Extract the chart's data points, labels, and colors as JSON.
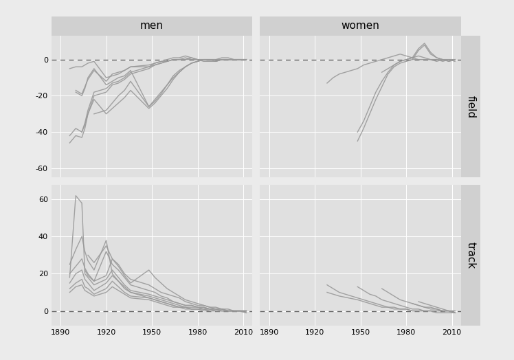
{
  "col_labels": [
    "men",
    "women"
  ],
  "row_labels": [
    "field",
    "track"
  ],
  "fig_bg": "#ebebeb",
  "panel_bg": "#e0e0e0",
  "strip_bg": "#d0d0d0",
  "line_color": "#999999",
  "x_ticks": [
    1890,
    1920,
    1950,
    1980,
    2010
  ],
  "field_ylim": [
    -65,
    13
  ],
  "field_yticks": [
    0,
    -20,
    -40,
    -60
  ],
  "track_ylim": [
    -8,
    68
  ],
  "track_yticks": [
    0,
    20,
    40,
    60
  ],
  "men_field_events": [
    {
      "years": [
        1896,
        1900,
        1904,
        1906,
        1908,
        1912,
        1920,
        1924,
        1928,
        1932,
        1936,
        1948,
        1952,
        1956,
        1960,
        1964,
        1968,
        1972,
        1976,
        1980,
        1984,
        1988,
        1992,
        1996,
        2000,
        2004,
        2008,
        2012
      ],
      "values": [
        -46,
        -42,
        -43,
        -38,
        -30,
        -20,
        -18,
        -14,
        -13,
        -11,
        -8,
        -5,
        -3,
        -2,
        -1,
        0,
        0,
        1,
        0,
        0,
        -1,
        -1,
        -1,
        0,
        0,
        0,
        0,
        0
      ]
    },
    {
      "years": [
        1896,
        1900,
        1904,
        1906,
        1908,
        1912,
        1920,
        1924,
        1928,
        1932,
        1936,
        1948,
        1952,
        1956,
        1960,
        1964,
        1968,
        1972,
        1976,
        1980,
        1984,
        1988,
        1992,
        1996,
        2000,
        2004,
        2008,
        2012
      ],
      "values": [
        -42,
        -38,
        -40,
        -35,
        -28,
        -18,
        -16,
        -13,
        -12,
        -10,
        -7,
        -4,
        -2,
        -1,
        0,
        1,
        1,
        2,
        1,
        0,
        0,
        0,
        0,
        1,
        1,
        0,
        0,
        0
      ]
    },
    {
      "years": [
        1900,
        1904,
        1906,
        1908,
        1912,
        1920,
        1924,
        1928,
        1932,
        1936,
        1948,
        1952,
        1956,
        1960,
        1964,
        1968,
        1972,
        1976,
        1980,
        1984,
        1988,
        1992,
        1996,
        2000,
        2004,
        2008,
        2012
      ],
      "values": [
        -18,
        -20,
        -16,
        -10,
        -5,
        -14,
        -12,
        -10,
        -9,
        -6,
        -26,
        -22,
        -18,
        -14,
        -10,
        -7,
        -4,
        -2,
        -1,
        0,
        0,
        0,
        0,
        0,
        0,
        0,
        0
      ]
    },
    {
      "years": [
        1904,
        1906,
        1908,
        1912,
        1920,
        1924,
        1928,
        1932,
        1936,
        1948,
        1952,
        1956,
        1960,
        1964,
        1968,
        1972,
        1976,
        1980,
        1984,
        1988,
        1992,
        1996,
        2000,
        2004,
        2008,
        2012
      ],
      "values": [
        -40,
        -36,
        -30,
        -22,
        -30,
        -27,
        -24,
        -21,
        -17,
        -27,
        -24,
        -20,
        -16,
        -11,
        -7,
        -4,
        -2,
        -1,
        0,
        0,
        -1,
        0,
        0,
        0,
        0,
        0
      ]
    },
    {
      "years": [
        1900,
        1904,
        1908,
        1912,
        1920,
        1924,
        1928,
        1932,
        1936,
        1948,
        1952,
        1956,
        1960,
        1964,
        1968,
        1972,
        1976,
        1980,
        1984,
        1988,
        1992,
        1996,
        2000,
        2004,
        2008,
        2012
      ],
      "values": [
        -17,
        -19,
        -11,
        -6,
        -12,
        -8,
        -7,
        -6,
        -4,
        -4,
        -3,
        -2,
        -1,
        0,
        0,
        0,
        1,
        0,
        0,
        0,
        -1,
        0,
        0,
        0,
        0,
        0
      ]
    },
    {
      "years": [
        1912,
        1920,
        1924,
        1928,
        1932,
        1936,
        1948,
        1952,
        1956,
        1960,
        1964,
        1968,
        1972,
        1976,
        1980,
        1984,
        1988,
        1992,
        1996,
        2000,
        2004,
        2008,
        2012
      ],
      "values": [
        -30,
        -28,
        -24,
        -20,
        -17,
        -12,
        -26,
        -23,
        -19,
        -14,
        -9,
        -6,
        -4,
        -2,
        -1,
        0,
        0,
        0,
        0,
        0,
        0,
        0,
        0
      ]
    },
    {
      "years": [
        1896,
        1900,
        1904,
        1906,
        1908,
        1912,
        1920,
        1924,
        1928,
        1932,
        1936,
        1948,
        1952,
        1956,
        1960,
        1964,
        1968,
        1972,
        1976,
        1980,
        1984,
        1988,
        1992,
        1996,
        2000,
        2004,
        2008,
        2012
      ],
      "values": [
        -5,
        -4,
        -4,
        -3,
        -2,
        -1,
        -10,
        -9,
        -8,
        -6,
        -4,
        -3,
        -2,
        -1,
        -1,
        0,
        0,
        0,
        0,
        0,
        0,
        0,
        0,
        0,
        0,
        0,
        0,
        0
      ]
    }
  ],
  "women_field_events": [
    {
      "years": [
        1928,
        1932,
        1936,
        1948,
        1952,
        1956,
        1960,
        1964,
        1968,
        1972,
        1976,
        1980,
        1984,
        1988,
        1992,
        1996,
        2000,
        2004,
        2008,
        2012
      ],
      "values": [
        -13,
        -10,
        -8,
        -5,
        -3,
        -2,
        -1,
        0,
        1,
        2,
        3,
        2,
        1,
        0,
        0,
        0,
        0,
        -1,
        0,
        0
      ]
    },
    {
      "years": [
        1948,
        1952,
        1956,
        1960,
        1964,
        1968,
        1972,
        1976,
        1980,
        1984,
        1988,
        1992,
        1996,
        2000,
        2004,
        2008,
        2012
      ],
      "values": [
        -45,
        -38,
        -30,
        -22,
        -15,
        -8,
        -4,
        -2,
        -1,
        0,
        5,
        8,
        3,
        1,
        0,
        -1,
        0
      ]
    },
    {
      "years": [
        1948,
        1952,
        1956,
        1960,
        1964,
        1968,
        1972,
        1976,
        1980,
        1984,
        1988,
        1992,
        1996,
        2000,
        2004,
        2008,
        2012
      ],
      "values": [
        -40,
        -34,
        -26,
        -18,
        -12,
        -7,
        -3,
        -1,
        0,
        1,
        6,
        9,
        4,
        1,
        0,
        -1,
        0
      ]
    },
    {
      "years": [
        1964,
        1968,
        1972,
        1976,
        1980,
        1984,
        1988,
        1992,
        1996,
        2000,
        2004,
        2008,
        2012
      ],
      "values": [
        -7,
        -5,
        -3,
        -1,
        0,
        1,
        2,
        1,
        0,
        0,
        0,
        0,
        0
      ]
    },
    {
      "years": [
        1984,
        1988,
        1992,
        1996,
        2000,
        2004,
        2008,
        2012
      ],
      "values": [
        0,
        0,
        0,
        0,
        -1,
        0,
        0,
        -1
      ]
    }
  ],
  "men_track_events": [
    {
      "years": [
        1896,
        1900,
        1904,
        1906,
        1908,
        1912,
        1920,
        1924,
        1928,
        1932,
        1936,
        1948,
        1952,
        1956,
        1960,
        1964,
        1968,
        1972,
        1976,
        1980,
        1984,
        1988,
        1992,
        1996,
        2000,
        2004,
        2008,
        2012
      ],
      "values": [
        18,
        62,
        58,
        20,
        18,
        14,
        17,
        22,
        18,
        14,
        11,
        9,
        8,
        7,
        6,
        5,
        4,
        3,
        3,
        2,
        2,
        1,
        1,
        1,
        0,
        0,
        0,
        -1
      ]
    },
    {
      "years": [
        1896,
        1900,
        1904,
        1906,
        1908,
        1912,
        1920,
        1924,
        1928,
        1932,
        1936,
        1948,
        1952,
        1956,
        1960,
        1964,
        1968,
        1972,
        1976,
        1980,
        1984,
        1988,
        1992,
        1996,
        2000,
        2004,
        2008,
        2012
      ],
      "values": [
        15,
        20,
        22,
        17,
        15,
        11,
        15,
        19,
        16,
        12,
        10,
        8,
        7,
        6,
        5,
        4,
        3,
        2,
        2,
        2,
        1,
        1,
        1,
        1,
        0,
        0,
        0,
        0
      ]
    },
    {
      "years": [
        1896,
        1900,
        1904,
        1906,
        1908,
        1912,
        1920,
        1924,
        1928,
        1932,
        1936,
        1948,
        1952,
        1956,
        1960,
        1964,
        1968,
        1972,
        1976,
        1980,
        1984,
        1988,
        1992,
        1996,
        2000,
        2004,
        2008,
        2012
      ],
      "values": [
        12,
        15,
        17,
        13,
        12,
        9,
        12,
        16,
        13,
        10,
        8,
        7,
        6,
        5,
        4,
        3,
        2,
        2,
        1,
        1,
        1,
        1,
        0,
        0,
        0,
        0,
        0,
        0
      ]
    },
    {
      "years": [
        1896,
        1900,
        1904,
        1906,
        1908,
        1912,
        1920,
        1924,
        1928,
        1932,
        1936,
        1948,
        1952,
        1956,
        1960,
        1964,
        1968,
        1972,
        1976,
        1980,
        1984,
        1988,
        1992,
        1996,
        2000,
        2004,
        2008,
        2012
      ],
      "values": [
        10,
        13,
        14,
        11,
        10,
        8,
        10,
        13,
        11,
        9,
        7,
        6,
        5,
        4,
        3,
        2,
        2,
        1,
        1,
        1,
        1,
        0,
        0,
        0,
        0,
        0,
        0,
        0
      ]
    },
    {
      "years": [
        1896,
        1900,
        1904,
        1906,
        1908,
        1912,
        1920,
        1924,
        1928,
        1932,
        1936,
        1948,
        1952,
        1956,
        1960,
        1964,
        1968,
        1972,
        1976,
        1980,
        1984,
        1988,
        1992,
        1996,
        2000,
        2004,
        2008,
        2012
      ],
      "values": [
        20,
        24,
        28,
        23,
        20,
        16,
        19,
        28,
        25,
        20,
        17,
        14,
        12,
        10,
        9,
        8,
        7,
        5,
        4,
        3,
        3,
        2,
        2,
        1,
        1,
        0,
        0,
        0
      ]
    },
    {
      "years": [
        1906,
        1908,
        1912,
        1920,
        1924,
        1928,
        1932,
        1936,
        1948,
        1952,
        1956,
        1960,
        1964,
        1968,
        1972,
        1976,
        1980,
        1984,
        1988,
        1992,
        1996,
        2000,
        2004,
        2008,
        2012
      ],
      "values": [
        22,
        19,
        16,
        32,
        25,
        22,
        18,
        14,
        11,
        10,
        8,
        7,
        5,
        4,
        3,
        3,
        2,
        2,
        1,
        1,
        0,
        0,
        0,
        0,
        0
      ]
    },
    {
      "years": [
        1896,
        1900,
        1904,
        1906,
        1908,
        1912,
        1920,
        1924,
        1928,
        1932,
        1936,
        1948,
        1952,
        1956,
        1960,
        1964,
        1968,
        1972,
        1976,
        1980,
        1984,
        1988,
        1992,
        1996,
        2000,
        2004,
        2008,
        2012
      ],
      "values": [
        25,
        33,
        40,
        32,
        27,
        22,
        38,
        20,
        16,
        13,
        10,
        7,
        6,
        5,
        4,
        3,
        2,
        2,
        1,
        1,
        0,
        0,
        0,
        0,
        0,
        0,
        0,
        0
      ]
    },
    {
      "years": [
        1908,
        1912,
        1920,
        1924,
        1928,
        1932,
        1936,
        1948,
        1952,
        1956,
        1960,
        1964,
        1968,
        1972,
        1976,
        1980,
        1984,
        1988,
        1992,
        1996,
        2000,
        2004,
        2008,
        2012
      ],
      "values": [
        30,
        26,
        35,
        28,
        24,
        19,
        15,
        22,
        18,
        15,
        12,
        10,
        8,
        6,
        5,
        4,
        3,
        2,
        1,
        1,
        0,
        0,
        0,
        -1
      ]
    }
  ],
  "women_track_events": [
    {
      "years": [
        1928,
        1932,
        1936,
        1948,
        1952,
        1956,
        1960,
        1964,
        1968,
        1972,
        1976,
        1980,
        1984,
        1988,
        1992,
        1996,
        2000,
        2004,
        2008,
        2012
      ],
      "values": [
        14,
        12,
        10,
        7,
        6,
        5,
        4,
        3,
        2,
        2,
        1,
        1,
        0,
        0,
        0,
        0,
        -1,
        -1,
        -1,
        -1
      ]
    },
    {
      "years": [
        1928,
        1932,
        1936,
        1948,
        1952,
        1956,
        1960,
        1964,
        1968,
        1972,
        1976,
        1980,
        1984,
        1988,
        1992,
        1996,
        2000,
        2004,
        2008,
        2012
      ],
      "values": [
        10,
        9,
        8,
        6,
        5,
        4,
        3,
        2,
        2,
        1,
        1,
        1,
        0,
        0,
        0,
        0,
        0,
        0,
        0,
        0
      ]
    },
    {
      "years": [
        1948,
        1952,
        1956,
        1960,
        1964,
        1968,
        1972,
        1976,
        1980,
        1984,
        1988,
        1992,
        1996,
        2000,
        2004,
        2008,
        2012
      ],
      "values": [
        13,
        11,
        9,
        8,
        6,
        5,
        4,
        3,
        2,
        1,
        1,
        0,
        0,
        0,
        0,
        0,
        0
      ]
    },
    {
      "years": [
        1964,
        1968,
        1972,
        1976,
        1980,
        1984,
        1988,
        1992,
        1996,
        2000,
        2004,
        2008,
        2012
      ],
      "values": [
        12,
        10,
        8,
        6,
        5,
        4,
        3,
        2,
        1,
        1,
        0,
        0,
        -1
      ]
    },
    {
      "years": [
        1984,
        1988,
        1992,
        1996,
        2000,
        2004,
        2008,
        2012
      ],
      "values": [
        4,
        3,
        2,
        2,
        1,
        0,
        0,
        -1
      ]
    },
    {
      "years": [
        1988,
        1992,
        1996,
        2000,
        2004,
        2008,
        2012
      ],
      "values": [
        5,
        4,
        3,
        2,
        1,
        0,
        -1
      ]
    }
  ]
}
